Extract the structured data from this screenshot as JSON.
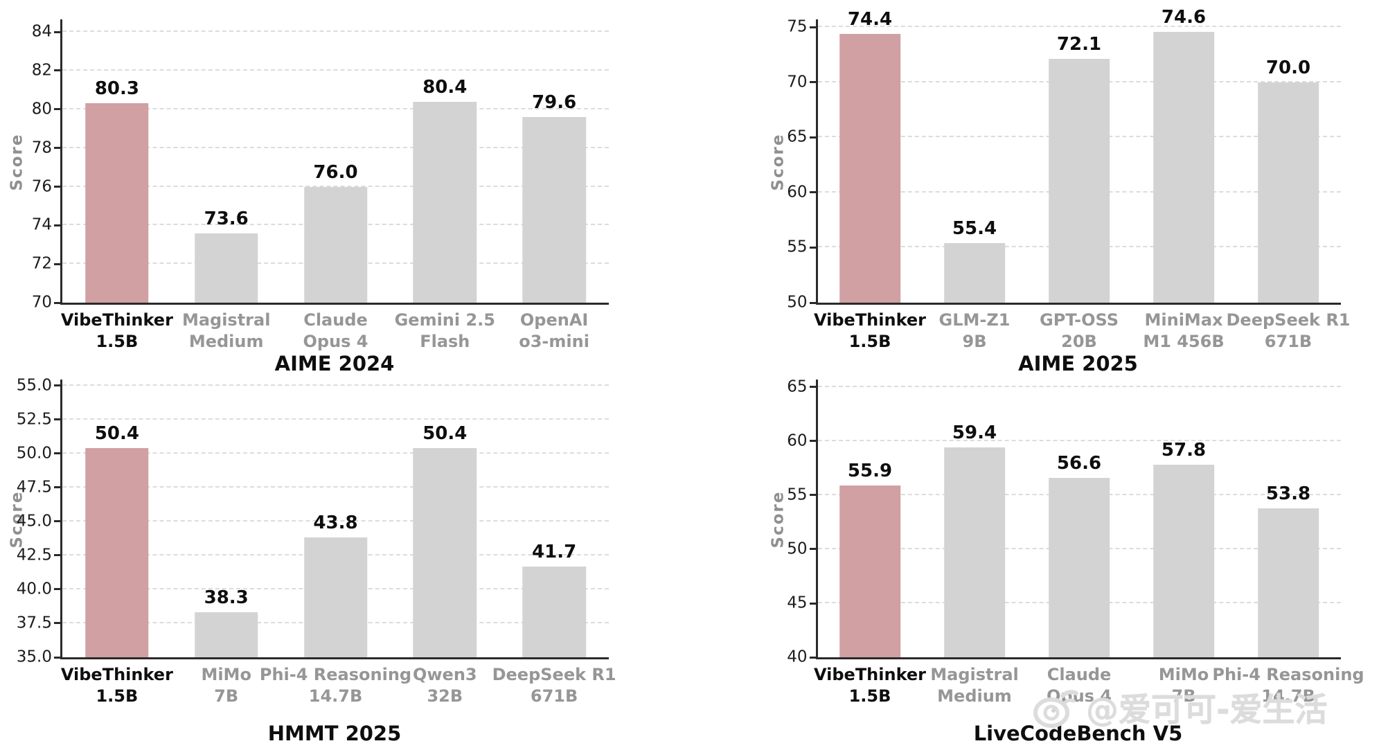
{
  "colors": {
    "highlight_bar": "#d0a0a2",
    "default_bar": "#d3d3d3",
    "gridline": "#dcdcdc",
    "spine": "#2a2a2a",
    "label_gray": "#969696",
    "label_black": "#0e0e0e"
  },
  "watermark": {
    "icon": "weibo-logo-icon",
    "text": "@爱可可-爱生活"
  },
  "chart_data": [
    {
      "type": "bar",
      "title": "AIME 2024",
      "ylabel": "Score",
      "grid": "dashed-horizontal",
      "ylim": [
        70,
        84.65
      ],
      "yticks": [
        "70",
        "72",
        "74",
        "76",
        "78",
        "80",
        "82",
        "84"
      ],
      "categories": [
        [
          "VibeThinker",
          "1.5B"
        ],
        [
          "Magistral",
          "Medium"
        ],
        [
          "Claude",
          "Opus 4"
        ],
        [
          "Gemini 2.5",
          "Flash"
        ],
        [
          "OpenAI",
          "o3-mini"
        ]
      ],
      "values": [
        80.3,
        73.6,
        76.0,
        80.4,
        79.6
      ],
      "value_labels": [
        "80.3",
        "73.6",
        "76.0",
        "80.4",
        "79.6"
      ],
      "highlight_index": 0
    },
    {
      "type": "bar",
      "title": "AIME 2025",
      "ylabel": "Score",
      "grid": "dashed-horizontal",
      "ylim": [
        50,
        75.7
      ],
      "yticks": [
        "50",
        "55",
        "60",
        "65",
        "70",
        "75"
      ],
      "categories": [
        [
          "VibeThinker",
          "1.5B"
        ],
        [
          "GLM-Z1",
          "9B"
        ],
        [
          "GPT-OSS",
          "20B"
        ],
        [
          "MiniMax",
          "M1 456B"
        ],
        [
          "DeepSeek R1",
          "671B"
        ]
      ],
      "values": [
        74.4,
        55.4,
        72.1,
        74.6,
        70.0
      ],
      "value_labels": [
        "74.4",
        "55.4",
        "72.1",
        "74.6",
        "70.0"
      ],
      "highlight_index": 0
    },
    {
      "type": "bar",
      "title": "HMMT 2025",
      "ylabel": "Score",
      "grid": "dashed-horizontal",
      "ylim": [
        35,
        55.45
      ],
      "yticks": [
        "35.0",
        "37.5",
        "40.0",
        "42.5",
        "45.0",
        "47.5",
        "50.0",
        "52.5",
        "55.0"
      ],
      "categories": [
        [
          "VibeThinker",
          "1.5B"
        ],
        [
          "MiMo",
          "7B"
        ],
        [
          "Phi-4 Reasoning",
          "14.7B"
        ],
        [
          "Qwen3",
          "32B"
        ],
        [
          "DeepSeek R1",
          "671B"
        ]
      ],
      "values": [
        50.4,
        38.3,
        43.8,
        50.4,
        41.7
      ],
      "value_labels": [
        "50.4",
        "38.3",
        "43.8",
        "50.4",
        "41.7"
      ],
      "highlight_index": 0
    },
    {
      "type": "bar",
      "title": "LiveCodeBench V5",
      "ylabel": "Score",
      "grid": "dashed-horizontal",
      "ylim": [
        40,
        65.7
      ],
      "yticks": [
        "40",
        "45",
        "50",
        "55",
        "60",
        "65"
      ],
      "categories": [
        [
          "VibeThinker",
          "1.5B"
        ],
        [
          "Magistral",
          "Medium"
        ],
        [
          "Claude",
          "Opus 4"
        ],
        [
          "MiMo",
          "7B"
        ],
        [
          "Phi-4 Reasoning",
          "14.7B"
        ]
      ],
      "values": [
        55.9,
        59.4,
        56.6,
        57.8,
        53.8
      ],
      "value_labels": [
        "55.9",
        "59.4",
        "56.6",
        "57.8",
        "53.8"
      ],
      "highlight_index": 0
    }
  ]
}
